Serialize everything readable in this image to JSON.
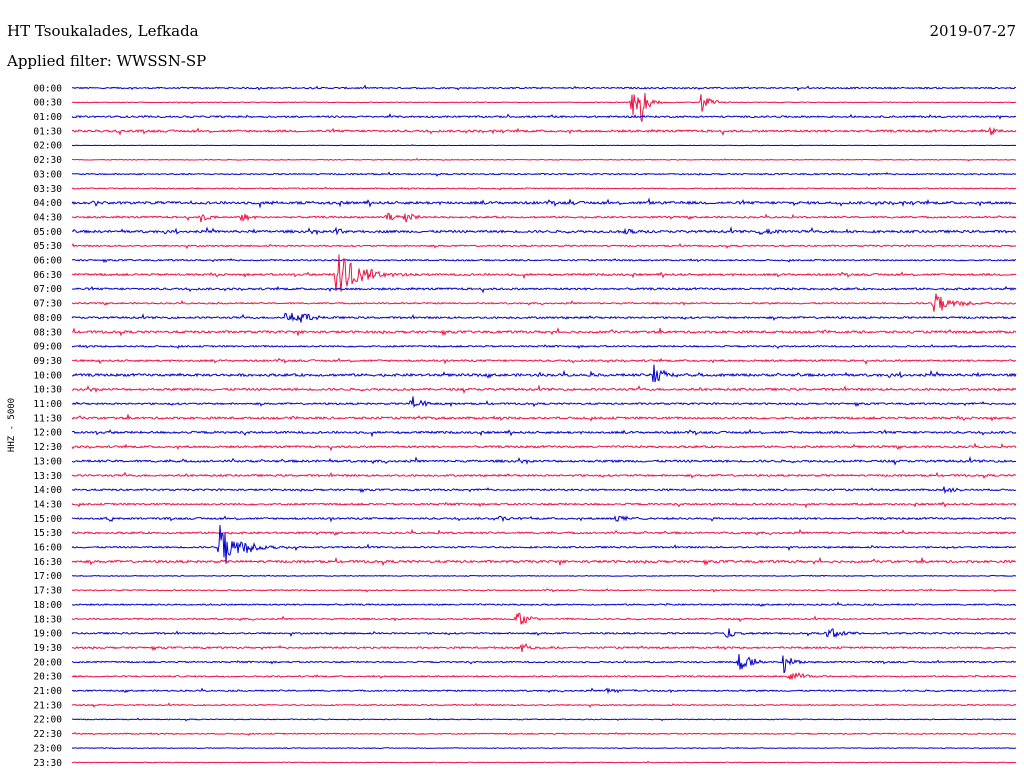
{
  "header": {
    "station": "HT Tsoukalades, Lefkada",
    "date": "2019-07-27",
    "filter": "Applied filter: WWSSN-SP"
  },
  "chart_data": {
    "type": "line",
    "ylabel": "HHZ - 5000",
    "row_labels": [
      "00:00",
      "00:30",
      "01:00",
      "01:30",
      "02:00",
      "02:30",
      "03:00",
      "03:30",
      "04:00",
      "04:30",
      "05:00",
      "05:30",
      "06:00",
      "06:30",
      "07:00",
      "07:30",
      "08:00",
      "08:30",
      "09:00",
      "09:30",
      "10:00",
      "10:30",
      "11:00",
      "11:30",
      "12:00",
      "12:30",
      "13:00",
      "13:30",
      "14:00",
      "14:30",
      "15:00",
      "15:30",
      "16:00",
      "16:30",
      "17:00",
      "17:30",
      "18:00",
      "18:30",
      "19:00",
      "19:30",
      "20:00",
      "20:30",
      "21:00",
      "21:30",
      "22:00",
      "22:30",
      "23:00",
      "23:30"
    ],
    "row_minutes": 30,
    "colors": [
      "#0000cc",
      "#ee1144"
    ],
    "noise": [
      1.0,
      0.5,
      1.2,
      1.5,
      0.3,
      0.5,
      0.9,
      0.8,
      1.8,
      1.2,
      1.6,
      1.0,
      1.0,
      1.4,
      1.4,
      1.0,
      1.3,
      1.6,
      1.1,
      1.3,
      1.7,
      1.5,
      1.2,
      1.5,
      1.5,
      1.4,
      1.5,
      1.3,
      1.2,
      1.3,
      1.3,
      1.3,
      1.1,
      1.6,
      0.6,
      0.8,
      1.0,
      1.0,
      1.1,
      1.2,
      1.0,
      1.0,
      1.0,
      0.8,
      0.6,
      0.8,
      0.5,
      0.5
    ],
    "events": [
      {
        "row": 1,
        "minute": 17.8,
        "amplitude": 14,
        "duration": 0.5
      },
      {
        "row": 1,
        "minute": 18.1,
        "amplitude": 22,
        "duration": 0.4
      },
      {
        "row": 1,
        "minute": 20.0,
        "amplitude": 12,
        "duration": 0.5
      },
      {
        "row": 3,
        "minute": 29.2,
        "amplitude": 5,
        "duration": 0.3
      },
      {
        "row": 8,
        "minute": 0.7,
        "amplitude": 3,
        "duration": 0.6
      },
      {
        "row": 8,
        "minute": 6.4,
        "amplitude": 3,
        "duration": 0.8
      },
      {
        "row": 9,
        "minute": 4.1,
        "amplitude": 6,
        "duration": 0.4
      },
      {
        "row": 9,
        "minute": 5.4,
        "amplitude": 6,
        "duration": 0.5
      },
      {
        "row": 9,
        "minute": 10.0,
        "amplitude": 6,
        "duration": 0.4
      },
      {
        "row": 9,
        "minute": 10.6,
        "amplitude": 6,
        "duration": 0.5
      },
      {
        "row": 10,
        "minute": 8.4,
        "amplitude": 4,
        "duration": 0.4
      },
      {
        "row": 10,
        "minute": 17.6,
        "amplitude": 6,
        "duration": 0.4
      },
      {
        "row": 10,
        "minute": 21.9,
        "amplitude": 6,
        "duration": 0.5
      },
      {
        "row": 13,
        "minute": 8.4,
        "amplitude": 25,
        "duration": 1.3
      },
      {
        "row": 15,
        "minute": 27.4,
        "amplitude": 12,
        "duration": 1.1
      },
      {
        "row": 16,
        "minute": 6.8,
        "amplitude": 9,
        "duration": 0.5
      },
      {
        "row": 16,
        "minute": 7.3,
        "amplitude": 7,
        "duration": 0.5
      },
      {
        "row": 20,
        "minute": 18.5,
        "amplitude": 14,
        "duration": 0.5
      },
      {
        "row": 22,
        "minute": 10.8,
        "amplitude": 11,
        "duration": 0.5
      },
      {
        "row": 28,
        "minute": 27.7,
        "amplitude": 4,
        "duration": 0.6
      },
      {
        "row": 30,
        "minute": 1.1,
        "amplitude": 4,
        "duration": 0.4
      },
      {
        "row": 30,
        "minute": 13.6,
        "amplitude": 4,
        "duration": 0.5
      },
      {
        "row": 30,
        "minute": 17.3,
        "amplitude": 4,
        "duration": 0.6
      },
      {
        "row": 32,
        "minute": 4.7,
        "amplitude": 24,
        "duration": 1.2
      },
      {
        "row": 37,
        "minute": 14.1,
        "amplitude": 12,
        "duration": 0.6
      },
      {
        "row": 38,
        "minute": 20.8,
        "amplitude": 5,
        "duration": 0.6
      },
      {
        "row": 38,
        "minute": 24.0,
        "amplitude": 7,
        "duration": 0.9
      },
      {
        "row": 39,
        "minute": 14.3,
        "amplitude": 5,
        "duration": 0.6
      },
      {
        "row": 40,
        "minute": 21.2,
        "amplitude": 14,
        "duration": 0.6
      },
      {
        "row": 40,
        "minute": 22.6,
        "amplitude": 12,
        "duration": 0.5
      },
      {
        "row": 41,
        "minute": 22.8,
        "amplitude": 8,
        "duration": 0.6
      },
      {
        "row": 42,
        "minute": 17.0,
        "amplitude": 3,
        "duration": 0.9
      }
    ]
  }
}
